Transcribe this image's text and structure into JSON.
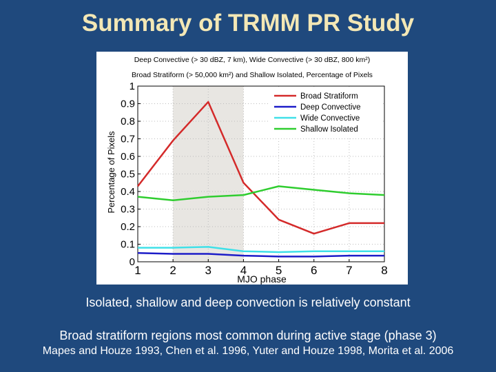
{
  "slide": {
    "title": "Summary of TRMM PR Study",
    "caption_1": "Isolated, shallow and deep convection is relatively constant",
    "caption_2": "Broad stratiform regions most common during active stage (phase 3)",
    "references": "Mapes and Houze 1993, Chen et al. 1996, Yuter and Houze 1998, Morita et al. 2006"
  },
  "colors": {
    "background": "#1f497d",
    "title": "#f3e7b5",
    "shade": "#e8e6e2"
  },
  "chart_data": {
    "type": "line",
    "title_line1": "Deep Convective (> 30 dBZ, 7 km), Wide Convective (> 30 dBZ, 800 km²)",
    "title_line2": "Broad Stratiform (> 50,000 km²) and Shallow Isolated, Percentage of Pixels",
    "xlabel": "MJO phase",
    "ylabel": "Percentage of Pixels",
    "x": [
      1,
      2,
      3,
      4,
      5,
      6,
      7,
      8
    ],
    "xlim": [
      1,
      8
    ],
    "ylim": [
      0,
      1
    ],
    "xticks": [
      "1",
      "2",
      "3",
      "4",
      "5",
      "6",
      "7",
      "8"
    ],
    "yticks": [
      "0",
      "0.1",
      "0.2",
      "0.3",
      "0.4",
      "0.5",
      "0.6",
      "0.7",
      "0.8",
      "0.9",
      "1"
    ],
    "shaded_x_range": [
      2,
      4
    ],
    "legend_position": "top-right",
    "series": [
      {
        "name": "Broad Stratiform",
        "color": "#d42a2a",
        "values": [
          0.43,
          0.69,
          0.91,
          0.45,
          0.24,
          0.16,
          0.22,
          0.22
        ]
      },
      {
        "name": "Deep Convective",
        "color": "#1c1cc8",
        "values": [
          0.05,
          0.045,
          0.045,
          0.035,
          0.03,
          0.03,
          0.035,
          0.035
        ]
      },
      {
        "name": "Wide Convective",
        "color": "#3fe0e8",
        "values": [
          0.08,
          0.08,
          0.085,
          0.06,
          0.055,
          0.06,
          0.06,
          0.06
        ]
      },
      {
        "name": "Shallow Isolated",
        "color": "#2fcd2f",
        "values": [
          0.37,
          0.35,
          0.37,
          0.38,
          0.43,
          0.41,
          0.39,
          0.38
        ]
      }
    ]
  }
}
